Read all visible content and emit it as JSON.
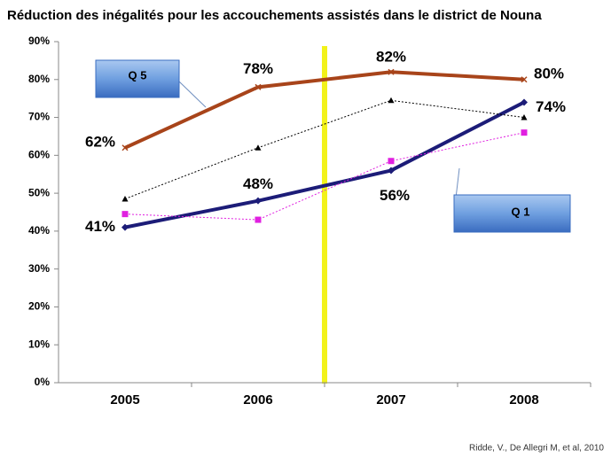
{
  "chart_data": {
    "type": "line",
    "title": "Réduction des inégalités pour les accouchements assistés dans le district de Nouna",
    "categories": [
      "2005",
      "2006",
      "2007",
      "2008"
    ],
    "series": [
      {
        "color": "#a8441a",
        "width": 4,
        "marker": "x",
        "values": [
          62,
          78,
          82,
          80
        ],
        "value_labels": [
          "62%",
          "78%",
          "82%",
          "80%"
        ]
      },
      {
        "color": "#1c1c78",
        "width": 4,
        "marker": "diamond",
        "values": [
          41,
          48,
          56,
          74
        ],
        "value_labels": [
          "41%",
          "48%",
          "56%",
          "74%"
        ]
      },
      {
        "color": "#000000",
        "width": 1,
        "line_style": "dotted",
        "marker": "triangle",
        "values": [
          48.5,
          62,
          74.5,
          70
        ]
      },
      {
        "color": "#e020e0",
        "width": 1,
        "line_style": "dotted",
        "marker": "square",
        "values": [
          44.5,
          43,
          58.5,
          66
        ]
      }
    ],
    "ylim": [
      0,
      90
    ],
    "yticks": [
      {
        "value": 0,
        "label": "0%"
      },
      {
        "value": 10,
        "label": "10%"
      },
      {
        "value": 20,
        "label": "20%"
      },
      {
        "value": 30,
        "label": "30%"
      },
      {
        "value": 40,
        "label": "40%"
      },
      {
        "value": 50,
        "label": "50%"
      },
      {
        "value": 60,
        "label": "60%"
      },
      {
        "value": 70,
        "label": "70%"
      },
      {
        "value": 80,
        "label": "80%"
      },
      {
        "value": 90,
        "label": "90%"
      }
    ],
    "annotations": [
      "Q 5",
      "Q 1"
    ],
    "source": "Ridde, V., De Allegri M, et al, 2010"
  }
}
